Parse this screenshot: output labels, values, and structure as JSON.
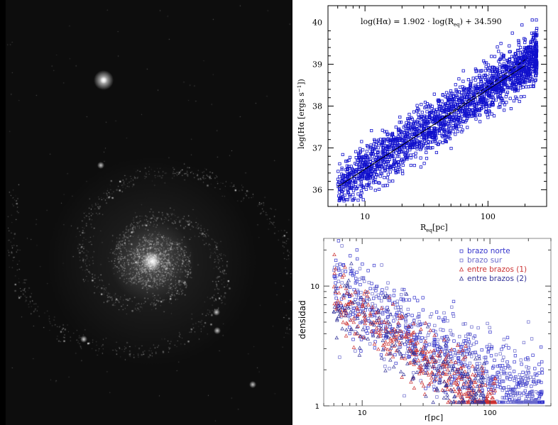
{
  "chart_data": [
    {
      "type": "scatter",
      "xscale": "log",
      "xlim": [
        5,
        300
      ],
      "ylim": [
        35.6,
        40.4
      ],
      "xticks": [
        10,
        100
      ],
      "xtick_labels": [
        "10",
        "100"
      ],
      "yticks": [
        36,
        37,
        38,
        39,
        40
      ],
      "ytick_labels": [
        "36",
        "37",
        "38",
        "39",
        "40"
      ],
      "xlabel_main": "R",
      "xlabel_sub": "eq",
      "xlabel_tail": "[pc]",
      "ylabel_main": "log(Hα [ergs s",
      "ylabel_sup": "−1",
      "ylabel_tail": "])",
      "annotation": {
        "prefix": "log(Hα) = 1.902 ⋅ log(R",
        "sub": "eq",
        "suffix": ") + 34.590"
      },
      "fit": {
        "slope": 1.902,
        "intercept": 34.59,
        "x_range": [
          6,
          200
        ]
      },
      "fit_dashed": {
        "x_range": [
          40,
          210
        ],
        "y_range": [
          37.65,
          39.15
        ]
      },
      "series": [
        {
          "marker": "square",
          "color": "#1010cc",
          "n": 2200,
          "x_range": [
            6,
            250
          ],
          "scatter": 0.3
        }
      ],
      "grid": false
    },
    {
      "type": "scatter",
      "xscale": "log",
      "yscale": "log",
      "xlim": [
        5,
        300
      ],
      "ylim": [
        1,
        25
      ],
      "xticks": [
        10,
        100
      ],
      "xtick_labels": [
        "10",
        "100"
      ],
      "yticks": [
        1,
        10
      ],
      "ytick_labels": [
        "1",
        "10"
      ],
      "xlabel": "r[pc]",
      "ylabel": "densidad",
      "legend_position": "top-right",
      "series": [
        {
          "name": "brazo norte",
          "marker": "square",
          "color": "#3333cc",
          "n": 520
        },
        {
          "name": "brazo sur",
          "marker": "square",
          "color": "#6a6acc",
          "n": 430
        },
        {
          "name": "entre brazos (1)",
          "marker": "triangle",
          "color": "#cc3333",
          "n": 420
        },
        {
          "name": "entre brazos (2)",
          "marker": "triangle",
          "color": "#333399",
          "n": 260
        }
      ],
      "grid": false
    }
  ]
}
